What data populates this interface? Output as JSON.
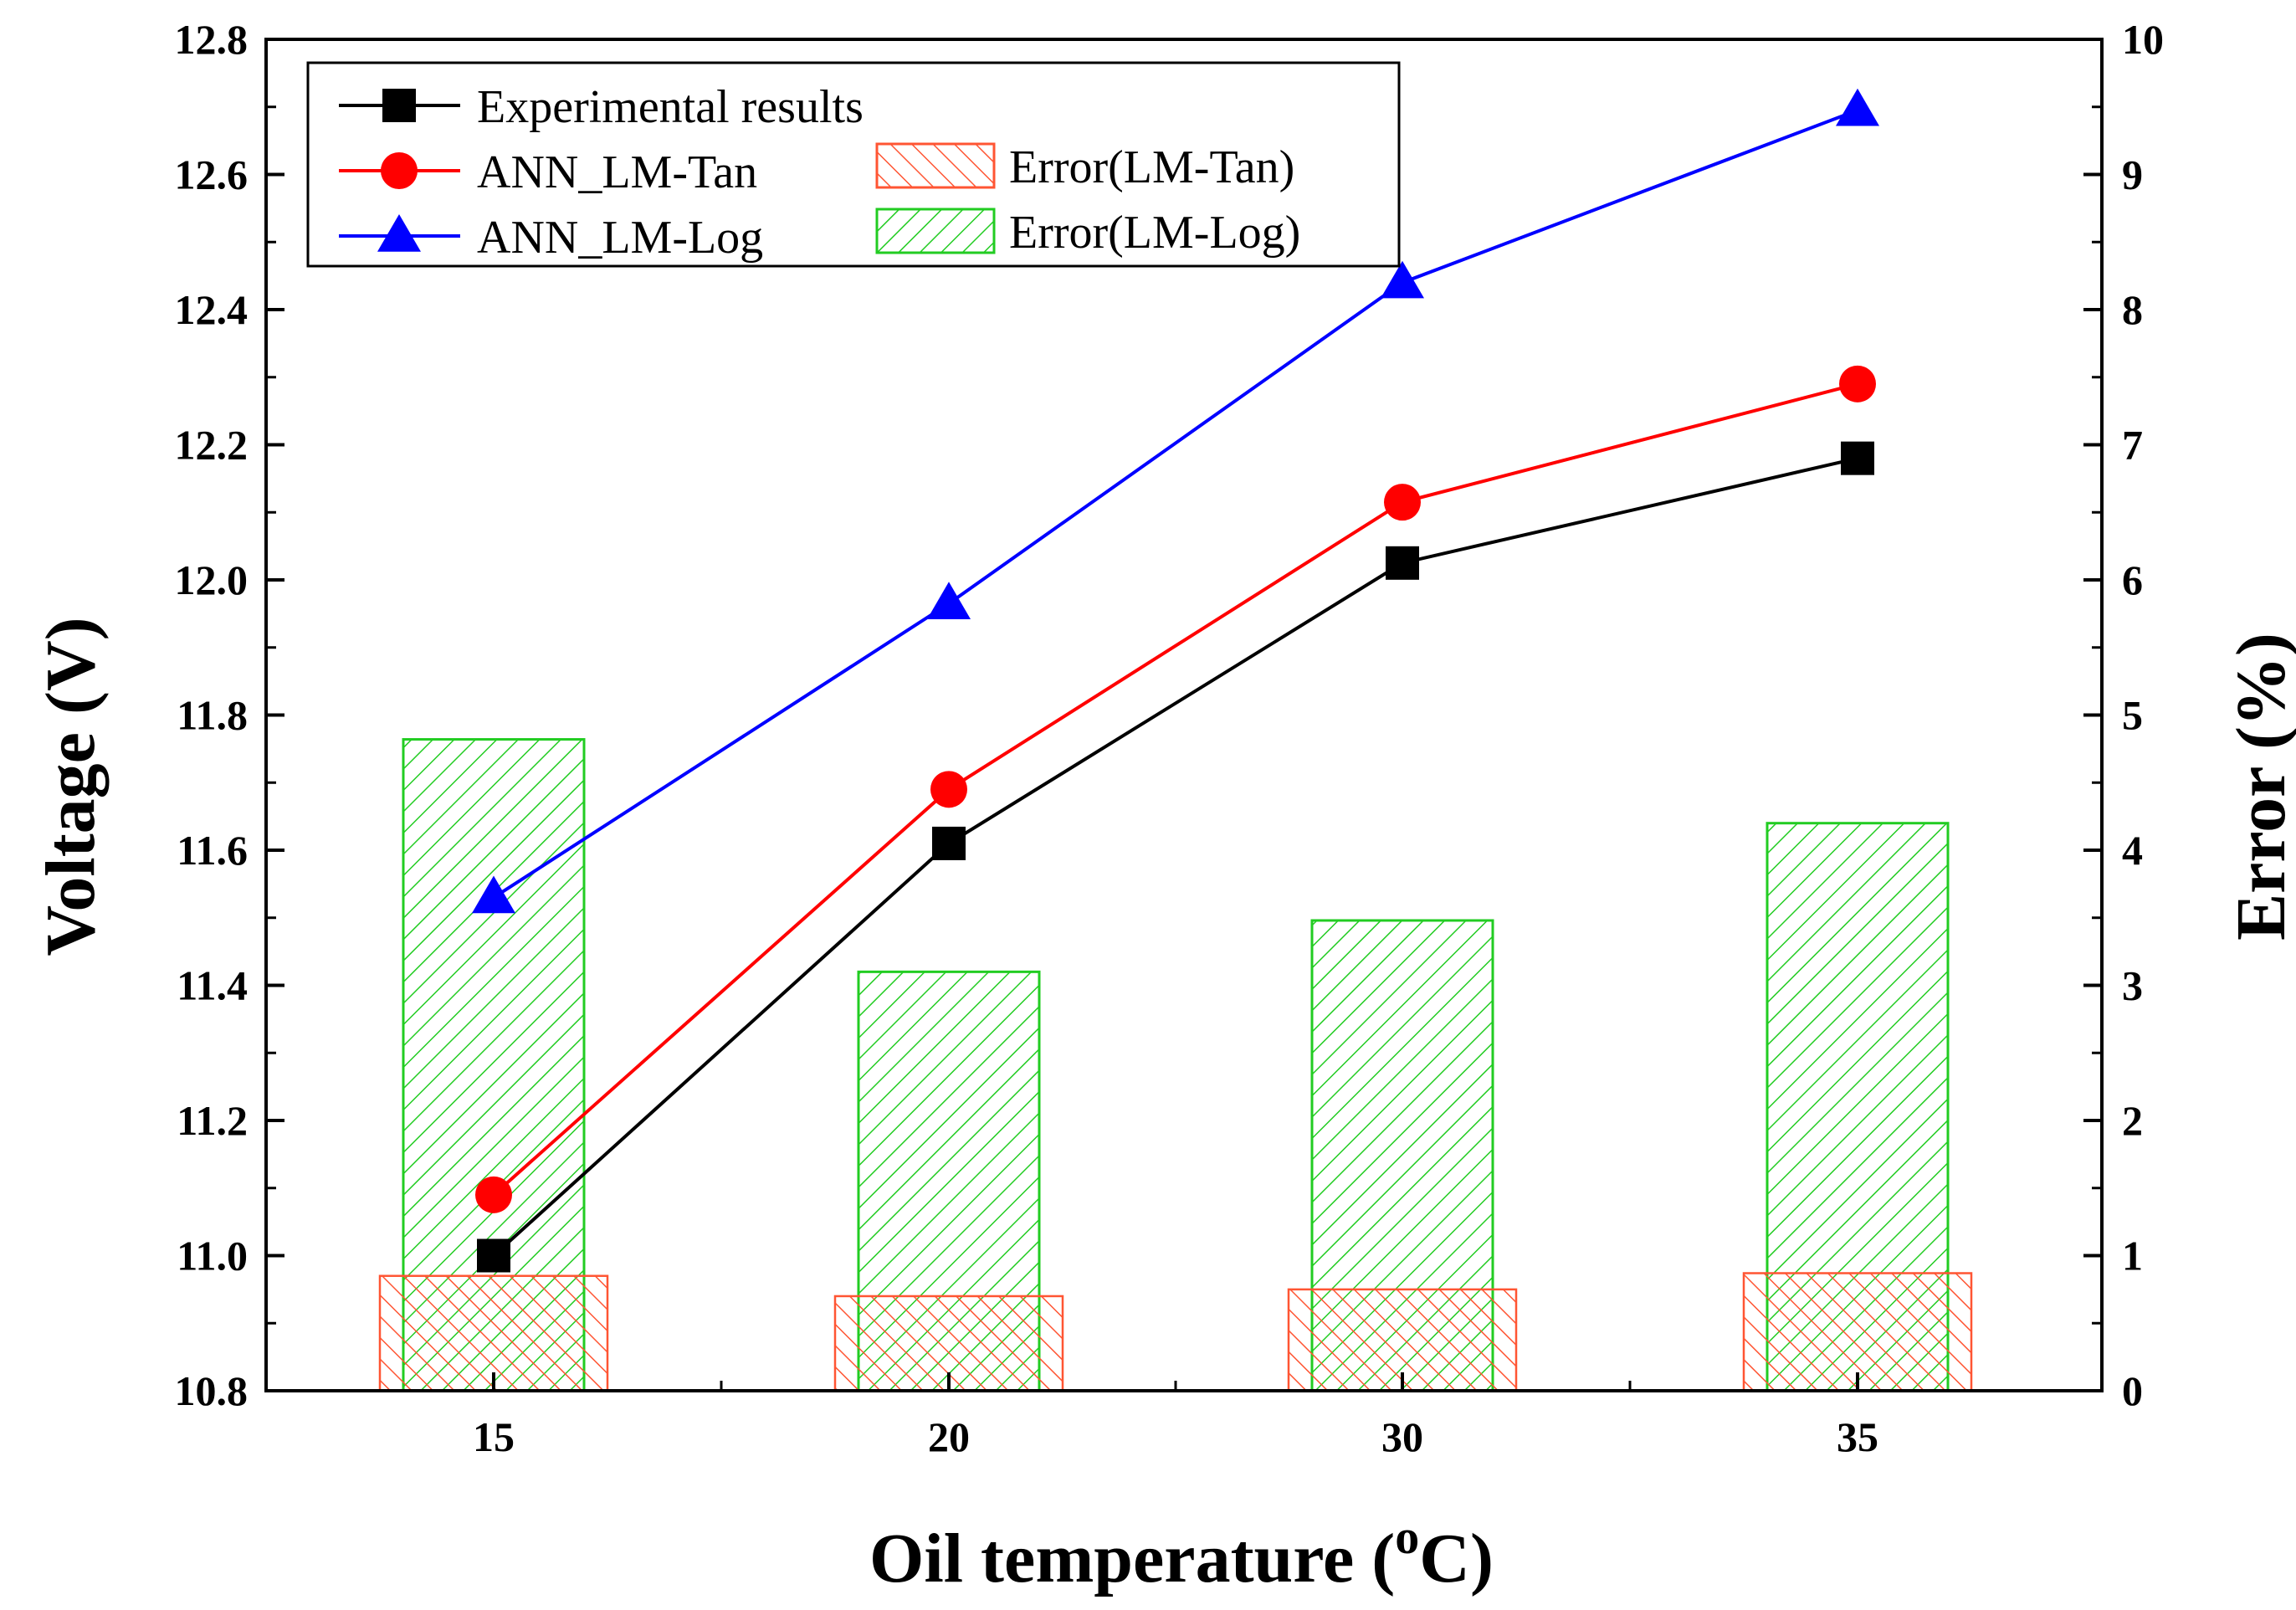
{
  "chart_data": {
    "type": "line+bar",
    "categories": [
      "15",
      "20",
      "30",
      "35"
    ],
    "xlabel": "Oil temperature (",
    "xlabel_sup": "o",
    "xlabel_suffix": "C)",
    "ylabel_left": "Voltage (V)",
    "ylabel_right": "Error (%)",
    "ylim_left": [
      10.8,
      12.8
    ],
    "ylim_right": [
      0,
      10
    ],
    "yticks_left": [
      "10.8",
      "11.0",
      "11.2",
      "11.4",
      "11.6",
      "11.8",
      "12.0",
      "12.2",
      "12.4",
      "12.6",
      "12.8"
    ],
    "yticks_right": [
      "0",
      "1",
      "2",
      "3",
      "4",
      "5",
      "6",
      "7",
      "8",
      "9",
      "10"
    ],
    "legend_position": "top-left",
    "series": [
      {
        "name": "Experimental results",
        "axis": "left",
        "kind": "line",
        "marker": "square",
        "color": "#000000",
        "values": [
          11.0,
          11.61,
          12.025,
          12.18
        ]
      },
      {
        "name": "ANN_LM-Tan",
        "axis": "left",
        "kind": "line",
        "marker": "circle",
        "color": "#ff0000",
        "values": [
          11.09,
          11.69,
          12.115,
          12.29
        ]
      },
      {
        "name": "ANN_LM-Log",
        "axis": "left",
        "kind": "line",
        "marker": "triangle",
        "color": "#0000ff",
        "values": [
          11.53,
          11.965,
          12.44,
          12.695
        ]
      },
      {
        "name": "Error(LM-Tan)",
        "axis": "right",
        "kind": "bar",
        "hatch": "backslash",
        "color": "#ff5533",
        "values": [
          0.85,
          0.7,
          0.75,
          0.87
        ]
      },
      {
        "name": "Error(LM-Log)",
        "axis": "right",
        "kind": "bar",
        "hatch": "slash",
        "color": "#22cc22",
        "values": [
          4.82,
          3.1,
          3.48,
          4.2
        ]
      }
    ]
  }
}
